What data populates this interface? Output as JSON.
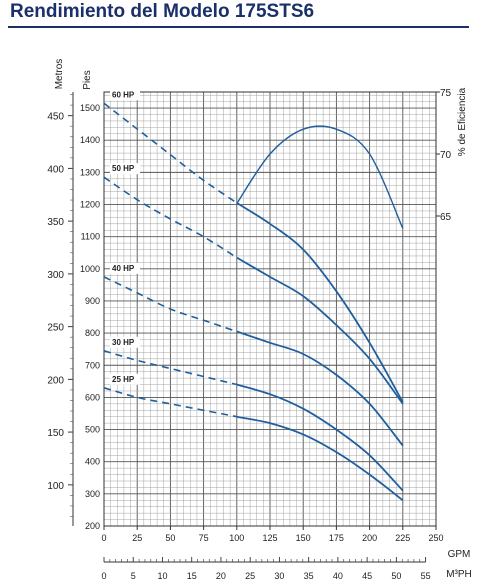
{
  "title": "Rendimiento del Modelo 175STS6",
  "colors": {
    "curve": "#1f5f9e",
    "title": "#1b2f6b",
    "grid": "#9a9a9a"
  },
  "chart_data": {
    "type": "line",
    "title": "Rendimiento del Modelo 175STS6",
    "x_primary": {
      "label": "GPM",
      "range": [
        0,
        250
      ],
      "ticks": [
        0,
        25,
        50,
        75,
        100,
        125,
        150,
        175,
        200,
        225,
        250
      ]
    },
    "x_secondary": {
      "label": "M³PH",
      "range": [
        0,
        56.78
      ],
      "ticks": [
        0,
        5,
        10,
        15,
        20,
        25,
        30,
        35,
        40,
        45,
        50,
        55
      ]
    },
    "y_feet": {
      "label": "Pies",
      "range": [
        200,
        1550
      ],
      "ticks": [
        200,
        300,
        400,
        500,
        600,
        700,
        800,
        900,
        1000,
        1100,
        1200,
        1300,
        1400,
        1500
      ]
    },
    "y_meters": {
      "label": "Metros",
      "range": [
        60.96,
        472.44
      ],
      "ticks": [
        100,
        150,
        200,
        250,
        300,
        350,
        400,
        450
      ]
    },
    "y_efficiency": {
      "label": "% de Eficiencia",
      "range": [
        40,
        75
      ],
      "ticks": [
        65,
        70,
        75
      ]
    },
    "grid": true,
    "series": [
      {
        "name": "60 HP",
        "dashed_until_x": 100,
        "x": [
          0,
          25,
          50,
          75,
          100,
          125,
          150,
          175,
          200,
          225
        ],
        "y": [
          1515,
          1435,
          1355,
          1275,
          1205,
          1140,
          1060,
          930,
          770,
          585
        ]
      },
      {
        "name": "50 HP",
        "dashed_until_x": 100,
        "x": [
          0,
          25,
          50,
          75,
          100,
          125,
          150,
          175,
          200,
          225
        ],
        "y": [
          1285,
          1215,
          1155,
          1100,
          1035,
          975,
          915,
          825,
          720,
          580
        ]
      },
      {
        "name": "40 HP",
        "dashed_until_x": 100,
        "x": [
          0,
          25,
          50,
          75,
          100,
          125,
          150,
          175,
          200,
          225
        ],
        "y": [
          975,
          925,
          875,
          840,
          805,
          770,
          735,
          670,
          580,
          450
        ]
      },
      {
        "name": "30 HP",
        "dashed_until_x": 100,
        "x": [
          0,
          25,
          50,
          75,
          100,
          125,
          150,
          175,
          200,
          225
        ],
        "y": [
          745,
          715,
          690,
          665,
          640,
          610,
          565,
          500,
          420,
          310
        ]
      },
      {
        "name": "25 HP",
        "dashed_until_x": 100,
        "x": [
          0,
          25,
          50,
          75,
          100,
          125,
          150,
          175,
          200,
          225
        ],
        "y": [
          630,
          600,
          580,
          560,
          540,
          520,
          485,
          430,
          360,
          280
        ]
      }
    ],
    "efficiency_curve": {
      "name": "% de Eficiencia",
      "x": [
        100,
        125,
        150,
        175,
        200,
        225
      ],
      "y": [
        66,
        70,
        72,
        72,
        70,
        64
      ]
    }
  }
}
